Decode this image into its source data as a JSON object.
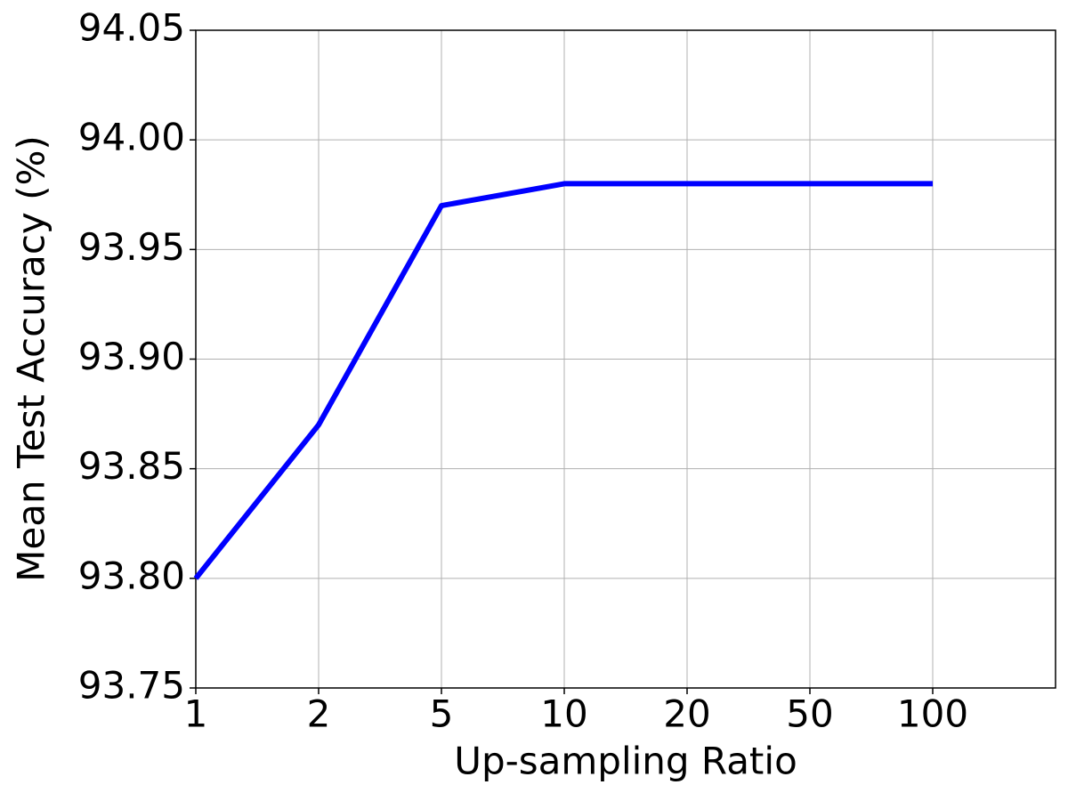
{
  "chart_data": {
    "type": "line",
    "x_label": "Up-sampling Ratio",
    "y_label": "Mean Test Accuracy (%)",
    "categories": [
      "1",
      "2",
      "5",
      "10",
      "20",
      "50",
      "100",
      null
    ],
    "series": [
      {
        "name": "Mean Test Accuracy",
        "color": "#0000ff",
        "values": [
          93.8,
          93.87,
          93.97,
          93.98,
          93.98,
          93.98,
          93.98,
          null
        ]
      }
    ],
    "ylim": [
      93.75,
      94.05
    ],
    "yticks": [
      93.75,
      {
        "value": 93.8,
        "label": "93.80"
      },
      93.85,
      {
        "value": 93.9,
        "label": "93.90"
      },
      93.95,
      {
        "value": 94.0,
        "label": "94.00"
      },
      94.05
    ],
    "grid": true
  }
}
